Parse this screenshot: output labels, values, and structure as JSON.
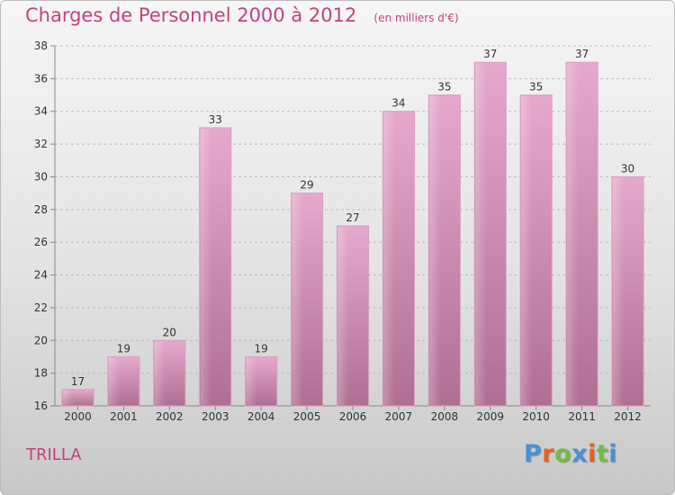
{
  "header": {
    "title": "Charges de Personnel 2000 à 2012",
    "unit": "(en milliers d'€)"
  },
  "footer": {
    "place": "TRILLA",
    "brand": "Proxiti",
    "brand_colors": [
      "#4a8fd6",
      "#e8601c",
      "#6fbe44",
      "#4a8fd6",
      "#e8601c",
      "#6fbe44",
      "#4a8fd6"
    ]
  },
  "chart_data": {
    "type": "bar",
    "categories": [
      "2000",
      "2001",
      "2002",
      "2003",
      "2004",
      "2005",
      "2006",
      "2007",
      "2008",
      "2009",
      "2010",
      "2011",
      "2012"
    ],
    "values": [
      17,
      19,
      20,
      33,
      19,
      29,
      27,
      34,
      35,
      37,
      35,
      37,
      30
    ],
    "data_labels": [
      "17",
      "19",
      "20",
      "33",
      "19",
      "29",
      "27",
      "34",
      "35",
      "37",
      "35",
      "37",
      "30"
    ],
    "ylim": [
      16,
      38
    ],
    "yticks": [
      16,
      18,
      20,
      22,
      24,
      26,
      28,
      30,
      32,
      34,
      36,
      38
    ],
    "grid": "horizontal dashed",
    "colors": {
      "bar_top": "#e6a9cd",
      "bar_bottom": "#b06e93",
      "axis": "#888888",
      "text": "#333333"
    }
  }
}
